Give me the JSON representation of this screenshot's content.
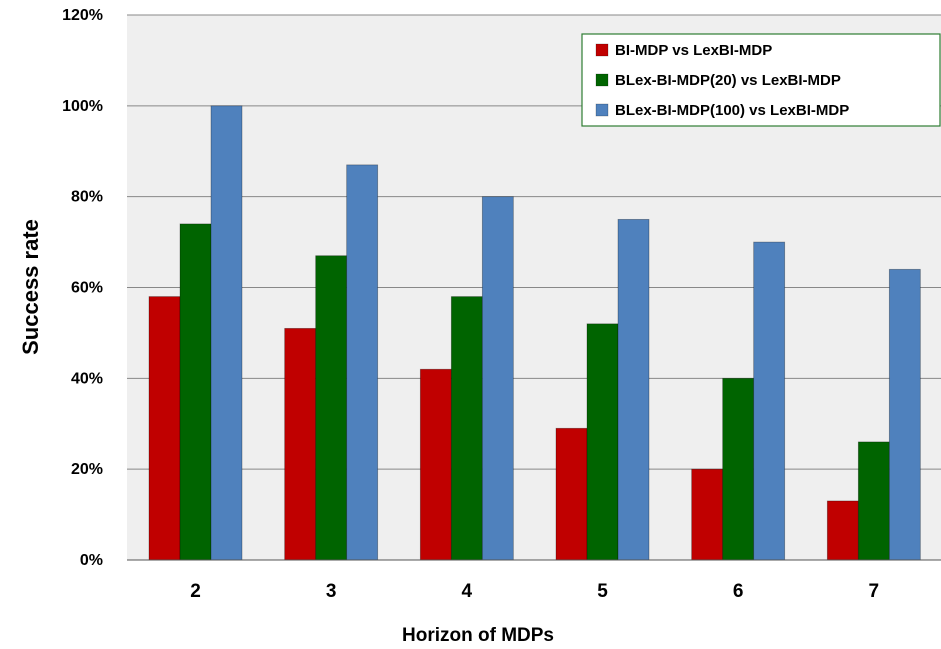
{
  "chart_data": {
    "type": "bar",
    "xlabel": "Horizon of MDPs",
    "ylabel": "Success rate",
    "categories": [
      "2",
      "3",
      "4",
      "5",
      "6",
      "7"
    ],
    "ylim": [
      0,
      120
    ],
    "y_ticks": [
      "0%",
      "20%",
      "40%",
      "60%",
      "80%",
      "100%",
      "120%"
    ],
    "y_tick_values": [
      0,
      20,
      40,
      60,
      80,
      100,
      120
    ],
    "grid": true,
    "legend_position": "top-right",
    "series": [
      {
        "name": "BI-MDP vs LexBI-MDP",
        "color": "#c00000",
        "values": [
          58,
          51,
          42,
          29,
          20,
          13
        ]
      },
      {
        "name": "BLex-BI-MDP(20) vs LexBI-MDP",
        "color": "#006400",
        "values": [
          74,
          67,
          58,
          52,
          40,
          26
        ]
      },
      {
        "name": "BLex-BI-MDP(100) vs LexBI-MDP",
        "color": "#4f81bd",
        "values": [
          100,
          87,
          80,
          75,
          70,
          64
        ]
      }
    ],
    "plot_background": "#efefef",
    "grid_color": "#888888"
  }
}
